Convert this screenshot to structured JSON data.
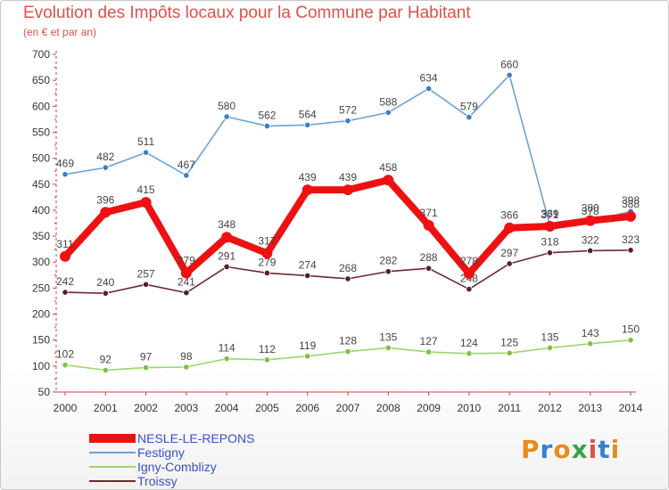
{
  "title": "Evolution des Impôts locaux pour la Commune par Habitant",
  "subtitle": "(en € et par an)",
  "logo": {
    "text": "Proxiti",
    "colors": [
      "#e98a1b",
      "#3a7fd0",
      "#e98a1b",
      "#3aa34a",
      "#e0504a",
      "#3a7fd0",
      "#e98a1b"
    ]
  },
  "chart_data": {
    "type": "line",
    "x": [
      "2000",
      "2001",
      "2002",
      "2003",
      "2004",
      "2005",
      "2006",
      "2007",
      "2008",
      "2009",
      "2010",
      "2011",
      "2012",
      "2013",
      "2014"
    ],
    "ylim": [
      50,
      700
    ],
    "yticks": [
      50,
      100,
      150,
      200,
      250,
      300,
      350,
      400,
      450,
      500,
      550,
      600,
      650,
      700
    ],
    "grid": false,
    "legend_position": "bottom-left",
    "series": [
      {
        "name": "Festigny",
        "color": "#6aa3d8",
        "marker": "#3a7fc8",
        "values": [
          469,
          482,
          511,
          467,
          580,
          562,
          564,
          572,
          588,
          634,
          579,
          660,
          371,
          378,
          398
        ]
      },
      {
        "name": "Igny-Comblizy",
        "color": "#9ad66a",
        "marker": "#7cc242",
        "values": [
          102,
          92,
          97,
          98,
          114,
          112,
          119,
          128,
          135,
          127,
          124,
          125,
          135,
          143,
          150
        ]
      },
      {
        "name": "Troissy",
        "color": "#6b2a30",
        "marker": "#5a1e24",
        "values": [
          242,
          240,
          257,
          241,
          291,
          279,
          274,
          268,
          282,
          288,
          248,
          297,
          318,
          322,
          323
        ]
      },
      {
        "name": "NESLE-LE-REPONS",
        "color": "#ee1111",
        "marker": "#ee1111",
        "bold": true,
        "values": [
          311,
          396,
          415,
          279,
          348,
          317,
          439,
          439,
          458,
          371,
          278,
          366,
          369,
          380,
          388
        ]
      }
    ]
  }
}
